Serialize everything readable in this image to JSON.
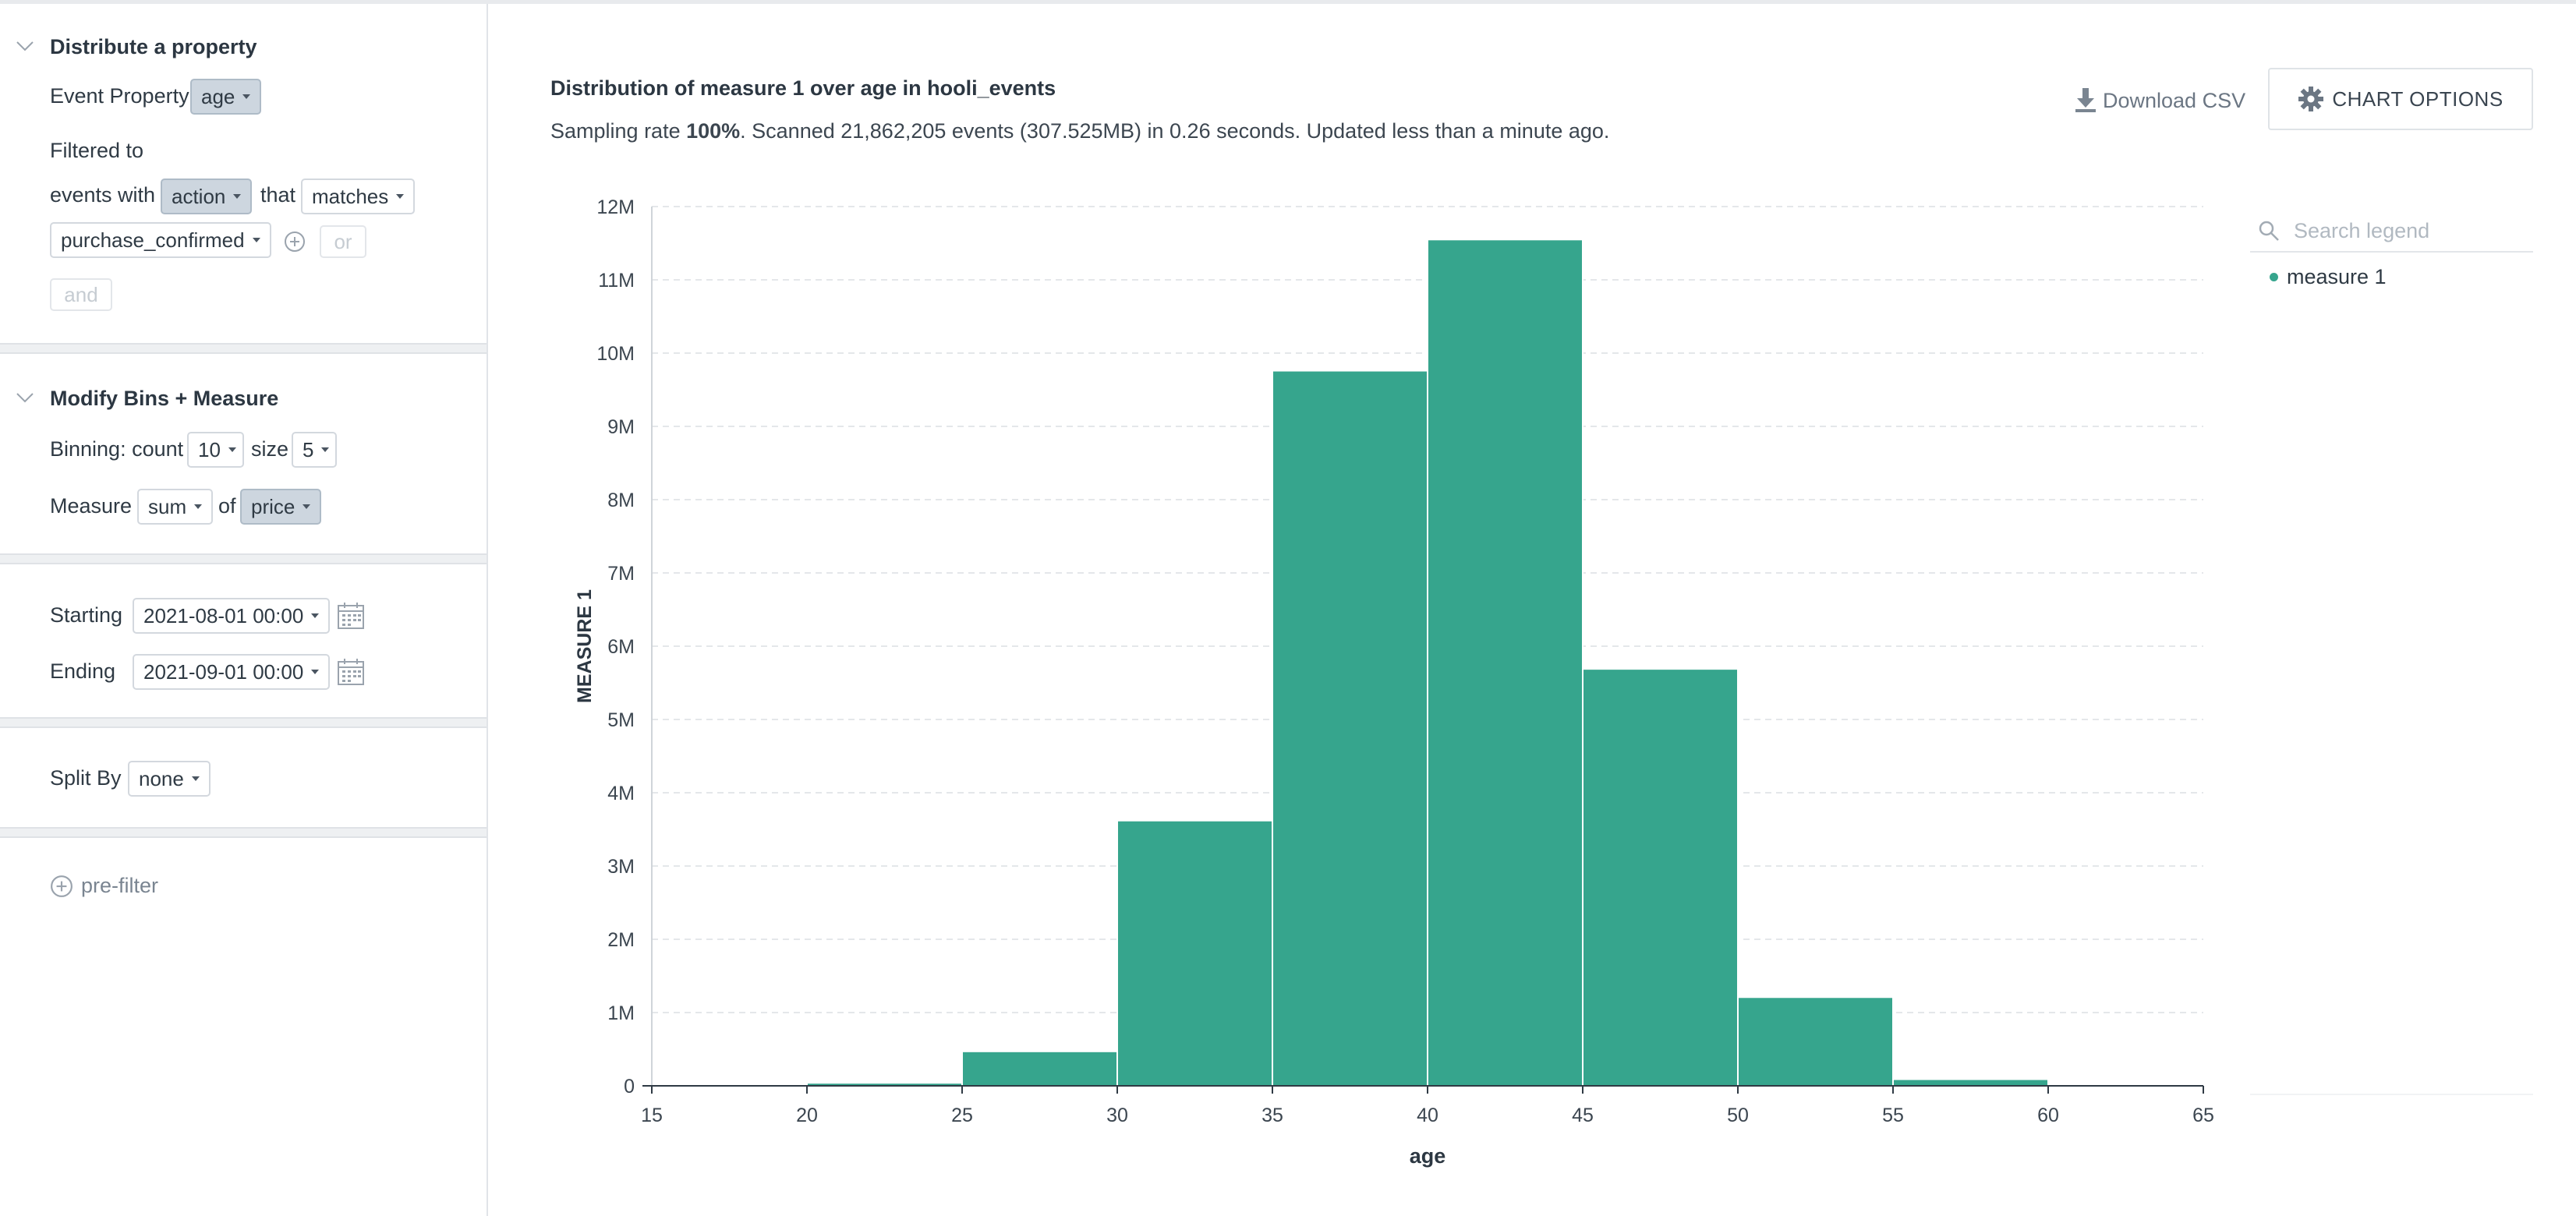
{
  "sidebar": {
    "property_section": {
      "title": "Distribute a property",
      "event_property_label": "Event Property",
      "event_property_value": "age",
      "filtered_to_label": "Filtered to",
      "events_with_label": "events with",
      "filter_column": "action",
      "that_label": "that",
      "filter_op": "matches",
      "filter_value": "purchase_confirmed",
      "or_label": "or",
      "and_label": "and"
    },
    "bins_section": {
      "title": "Modify Bins + Measure",
      "binning_label": "Binning: count",
      "count_value": "10",
      "size_label": "size",
      "size_value": "5",
      "measure_label": "Measure",
      "measure_agg": "sum",
      "of_label": "of",
      "measure_field": "price"
    },
    "time_section": {
      "starting_label": "Starting",
      "starting_value": "2021-08-01 00:00",
      "ending_label": "Ending",
      "ending_value": "2021-09-01 00:00"
    },
    "split_section": {
      "label": "Split By",
      "value": "none"
    },
    "prefilter_label": "pre-filter"
  },
  "main": {
    "title": "Distribution of measure 1 over age in hooli_events",
    "sub_prefix": "Sampling rate ",
    "sub_rate": "100%",
    "sub_suffix": ". Scanned 21,862,205 events (307.525MB) in 0.26 seconds. Updated less than a minute ago.",
    "download_label": "Download CSV",
    "options_label": "CHART OPTIONS",
    "legend_search_placeholder": "Search legend",
    "legend_items": [
      "measure 1"
    ]
  },
  "colors": {
    "bar": "#36a58d",
    "accent": "#36a58d"
  },
  "chart_data": {
    "type": "bar",
    "title": "Distribution of measure 1 over age in hooli_events",
    "xlabel": "age",
    "ylabel": "MEASURE 1",
    "bins": [
      {
        "x0": 15,
        "x1": 20,
        "value": 20000
      },
      {
        "x0": 20,
        "x1": 25,
        "value": 40000
      },
      {
        "x0": 25,
        "x1": 30,
        "value": 470000
      },
      {
        "x0": 30,
        "x1": 35,
        "value": 3620000
      },
      {
        "x0": 35,
        "x1": 40,
        "value": 9760000
      },
      {
        "x0": 40,
        "x1": 45,
        "value": 11550000
      },
      {
        "x0": 45,
        "x1": 50,
        "value": 5690000
      },
      {
        "x0": 50,
        "x1": 55,
        "value": 1210000
      },
      {
        "x0": 55,
        "x1": 60,
        "value": 90000
      },
      {
        "x0": 60,
        "x1": 65,
        "value": 20000
      }
    ],
    "x_ticks": [
      "15",
      "20",
      "25",
      "30",
      "35",
      "40",
      "45",
      "50",
      "55",
      "60",
      "65"
    ],
    "y_ticks": [
      "0",
      "1M",
      "2M",
      "3M",
      "4M",
      "5M",
      "6M",
      "7M",
      "8M",
      "9M",
      "10M",
      "11M",
      "12M"
    ],
    "xlim": [
      15,
      65
    ],
    "ylim": [
      0,
      12000000
    ],
    "grid": true,
    "legend": "right",
    "series": [
      {
        "name": "measure 1"
      }
    ]
  }
}
